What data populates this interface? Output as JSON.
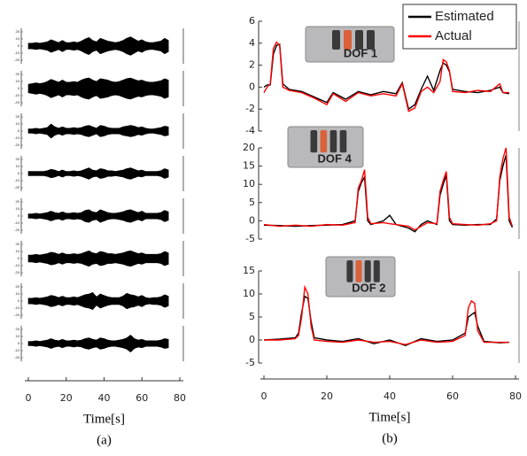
{
  "chart_data": [
    {
      "type": "area",
      "xlabel": "Time[s]",
      "caption": "(a)",
      "x": [
        0,
        2,
        4,
        6,
        8,
        10,
        12,
        14,
        16,
        18,
        20,
        22,
        24,
        26,
        28,
        30,
        32,
        34,
        36,
        38,
        40,
        42,
        44,
        46,
        48,
        50,
        52,
        54,
        56,
        58,
        60,
        62,
        64,
        66,
        68,
        70,
        72,
        74
      ],
      "xlim": [
        0,
        80
      ],
      "xticks": [
        0,
        20,
        40,
        60,
        80
      ],
      "ylim": [
        -25,
        25
      ],
      "yticks": [
        -20,
        -10,
        0,
        10,
        20
      ],
      "color": "#000000",
      "series": [
        {
          "values": [
            4,
            4,
            5,
            4,
            5,
            6,
            9,
            7,
            5,
            8,
            5,
            5,
            6,
            5,
            7,
            10,
            12,
            8,
            6,
            11,
            9,
            7,
            6,
            5,
            6,
            8,
            11,
            13,
            10,
            7,
            9,
            6,
            5,
            5,
            6,
            7,
            11,
            8
          ]
        },
        {
          "values": [
            6,
            7,
            8,
            7,
            8,
            10,
            13,
            11,
            9,
            12,
            9,
            9,
            10,
            9,
            12,
            14,
            15,
            12,
            10,
            14,
            13,
            12,
            10,
            9,
            10,
            12,
            14,
            15,
            13,
            11,
            12,
            10,
            9,
            9,
            10,
            11,
            14,
            12
          ]
        },
        {
          "values": [
            3,
            3,
            4,
            3,
            4,
            5,
            10,
            6,
            4,
            6,
            4,
            4,
            5,
            4,
            5,
            7,
            8,
            6,
            4,
            8,
            7,
            5,
            4,
            4,
            4,
            6,
            7,
            8,
            7,
            5,
            6,
            4,
            3,
            3,
            4,
            5,
            7,
            6
          ]
        },
        {
          "values": [
            3,
            3,
            3,
            3,
            3,
            4,
            6,
            5,
            3,
            5,
            3,
            3,
            4,
            3,
            4,
            6,
            8,
            5,
            4,
            7,
            6,
            4,
            4,
            3,
            4,
            5,
            7,
            8,
            6,
            4,
            5,
            3,
            3,
            3,
            3,
            4,
            7,
            5
          ]
        },
        {
          "values": [
            3,
            3,
            4,
            3,
            4,
            5,
            7,
            5,
            4,
            6,
            4,
            4,
            5,
            4,
            5,
            8,
            9,
            6,
            5,
            9,
            7,
            5,
            4,
            4,
            5,
            6,
            8,
            9,
            7,
            5,
            7,
            4,
            4,
            4,
            4,
            5,
            8,
            6
          ]
        },
        {
          "values": [
            5,
            5,
            6,
            5,
            6,
            7,
            9,
            8,
            6,
            8,
            6,
            6,
            7,
            6,
            7,
            9,
            11,
            8,
            7,
            10,
            9,
            7,
            7,
            6,
            7,
            8,
            10,
            11,
            9,
            7,
            8,
            6,
            6,
            6,
            6,
            7,
            10,
            8
          ]
        },
        {
          "values": [
            4,
            4,
            5,
            4,
            5,
            6,
            8,
            7,
            5,
            7,
            5,
            5,
            6,
            5,
            7,
            9,
            10,
            12,
            6,
            10,
            8,
            6,
            5,
            5,
            5,
            7,
            11,
            9,
            8,
            6,
            8,
            5,
            4,
            5,
            5,
            6,
            9,
            7
          ]
        },
        {
          "values": [
            3,
            3,
            4,
            3,
            4,
            5,
            7,
            5,
            4,
            6,
            4,
            4,
            5,
            4,
            5,
            7,
            8,
            6,
            5,
            8,
            7,
            5,
            4,
            4,
            5,
            6,
            8,
            12,
            7,
            5,
            6,
            4,
            4,
            4,
            4,
            5,
            7,
            6
          ]
        }
      ]
    },
    {
      "type": "line",
      "annotation": "DOF 1",
      "legend": "upper right",
      "x": [
        0,
        1,
        2,
        3,
        4,
        5,
        6,
        8,
        12,
        16,
        20,
        22,
        26,
        30,
        34,
        38,
        42,
        44,
        46,
        48,
        50,
        52,
        54,
        56,
        57,
        58,
        59,
        60,
        64,
        68,
        72,
        75,
        76,
        78
      ],
      "xlim": [
        0,
        80
      ],
      "ylim": [
        -4,
        6
      ],
      "yticks": [
        -4,
        -2,
        0,
        2,
        4,
        6
      ],
      "series": [
        {
          "name": "Estimated",
          "color": "#000000",
          "values": [
            0,
            0.2,
            0.2,
            3,
            3.8,
            3.9,
            0.3,
            -0.2,
            -0.4,
            -0.9,
            -1.4,
            -0.5,
            -1.1,
            -0.4,
            -0.7,
            -0.4,
            -0.6,
            0.4,
            -2,
            -1.6,
            -0.2,
            1,
            -0.3,
            1.5,
            2.2,
            2.0,
            1.4,
            -0.2,
            -0.4,
            -0.5,
            -0.3,
            0,
            -0.5,
            -0.6
          ]
        },
        {
          "name": "Actual",
          "color": "#ff0000",
          "values": [
            -0.5,
            0,
            0.3,
            3.5,
            4.1,
            3.8,
            0,
            -0.3,
            -0.5,
            -1,
            -1.6,
            -0.6,
            -1.3,
            -0.5,
            -0.8,
            -0.6,
            -0.8,
            0.3,
            -2.2,
            -1.9,
            -0.4,
            0,
            -0.5,
            0.5,
            2.5,
            2.3,
            1.5,
            -0.4,
            -0.5,
            -0.3,
            -0.4,
            0.3,
            -0.5,
            -0.5
          ]
        }
      ]
    },
    {
      "type": "line",
      "annotation": "DOF 4",
      "x": [
        0,
        5,
        10,
        15,
        20,
        25,
        29,
        30,
        31,
        32,
        33,
        34,
        38,
        40,
        42,
        46,
        48,
        50,
        52,
        55,
        56,
        57,
        58,
        59,
        60,
        64,
        68,
        72,
        74,
        75,
        76,
        77,
        78,
        79
      ],
      "xlim": [
        0,
        80
      ],
      "ylim": [
        -5,
        20
      ],
      "yticks": [
        -5,
        0,
        5,
        10,
        15,
        20
      ],
      "series": [
        {
          "color": "#000000",
          "values": [
            -1.2,
            -1.3,
            -1.5,
            -1.3,
            -1.2,
            -1,
            0,
            8,
            10.5,
            12,
            0,
            -1,
            0,
            1.5,
            -1,
            -2,
            -3,
            -1,
            0,
            -1,
            7,
            10,
            12.5,
            0,
            -1,
            -1.2,
            -1,
            -1,
            0.5,
            11,
            15,
            18,
            0,
            -1.8
          ]
        },
        {
          "color": "#ff0000",
          "values": [
            -1,
            -1.5,
            -1.2,
            -1.5,
            -1,
            -1.2,
            -0.5,
            9,
            11,
            14,
            1,
            -0.8,
            -0.5,
            -0.8,
            -1,
            -1.5,
            -2.5,
            -1.5,
            -0.5,
            -0.8,
            8,
            11,
            13.5,
            1,
            -0.8,
            -1,
            -1.2,
            -0.8,
            0,
            12,
            17,
            20,
            1,
            -1.5
          ]
        }
      ]
    },
    {
      "type": "line",
      "annotation": "DOF 2",
      "xlabel": "Time[s]",
      "caption": "(b)",
      "x": [
        0,
        5,
        10,
        11,
        12,
        13,
        14,
        15,
        16,
        20,
        25,
        30,
        35,
        40,
        45,
        50,
        55,
        60,
        64,
        65,
        66,
        67,
        68,
        70,
        75,
        78
      ],
      "xlim": [
        0,
        80
      ],
      "xticks": [
        0,
        20,
        40,
        60,
        80
      ],
      "ylim": [
        -5,
        15
      ],
      "yticks": [
        -5,
        0,
        5,
        10,
        15
      ],
      "series": [
        {
          "color": "#000000",
          "values": [
            0,
            0.2,
            0.5,
            1.5,
            6,
            9.5,
            9,
            4,
            0.5,
            0,
            -0.3,
            0.3,
            -0.8,
            0,
            -1.2,
            0.3,
            -0.3,
            0,
            1.5,
            5,
            5.5,
            6,
            3,
            -0.3,
            -0.6,
            -0.5
          ]
        },
        {
          "color": "#ff0000",
          "values": [
            0,
            0,
            0.3,
            1,
            5,
            11.5,
            10,
            3,
            0,
            -0.3,
            -0.5,
            0,
            -0.5,
            -0.3,
            -1,
            0,
            -0.5,
            -0.3,
            1,
            7,
            8.5,
            8,
            2,
            -0.5,
            -0.5,
            -0.5
          ]
        }
      ]
    }
  ]
}
